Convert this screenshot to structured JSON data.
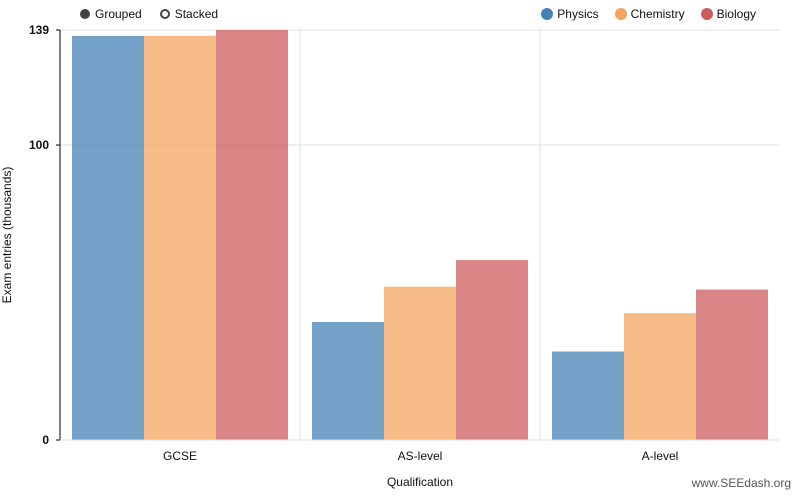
{
  "controls": [
    {
      "label": "Grouped",
      "selected": true
    },
    {
      "label": "Stacked",
      "selected": false
    }
  ],
  "footer": "www.SEEdash.org",
  "chart_data": {
    "type": "bar",
    "categories": [
      "GCSE",
      "AS-level",
      "A-level"
    ],
    "series": [
      {
        "name": "Physics",
        "color": "#4682b4",
        "values": [
          137,
          40,
          30
        ]
      },
      {
        "name": "Chemistry",
        "color": "#f4a460",
        "values": [
          137,
          52,
          43
        ]
      },
      {
        "name": "Biology",
        "color": "#cd5c5c",
        "values": [
          139,
          61,
          51
        ]
      }
    ],
    "xlabel": "Qualification",
    "ylabel": "Exam entries (thousands)",
    "ylim": [
      0,
      139
    ],
    "yticks": [
      0,
      100,
      139
    ],
    "grid": true,
    "legend": "top-right"
  }
}
